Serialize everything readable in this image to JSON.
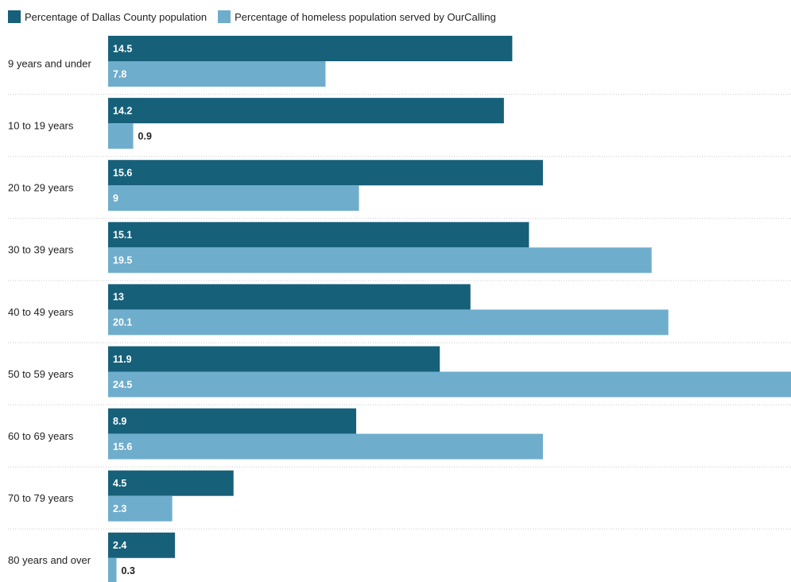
{
  "chart_data": {
    "type": "bar",
    "orientation": "horizontal",
    "categories": [
      "9 years and under",
      "10 to 19 years",
      "20 to 29 years",
      "30 to 39 years",
      "40 to 49 years",
      "50 to 59 years",
      "60 to 69 years",
      "70 to 79 years",
      "80 years and over"
    ],
    "series": [
      {
        "name": "Percentage of Dallas County population",
        "color": "#17607a",
        "values": [
          14.5,
          14.2,
          15.6,
          15.1,
          13,
          11.9,
          8.9,
          4.5,
          2.4
        ]
      },
      {
        "name": "Percentage of homeless population served by OurCalling",
        "color": "#6fadcc",
        "values": [
          7.8,
          0.9,
          9,
          19.5,
          20.1,
          24.5,
          15.6,
          2.3,
          0.3
        ]
      }
    ],
    "xlim": [
      0,
      24.5
    ],
    "grid": false,
    "legend": "top-left",
    "title": "",
    "xlabel": "",
    "ylabel": ""
  }
}
